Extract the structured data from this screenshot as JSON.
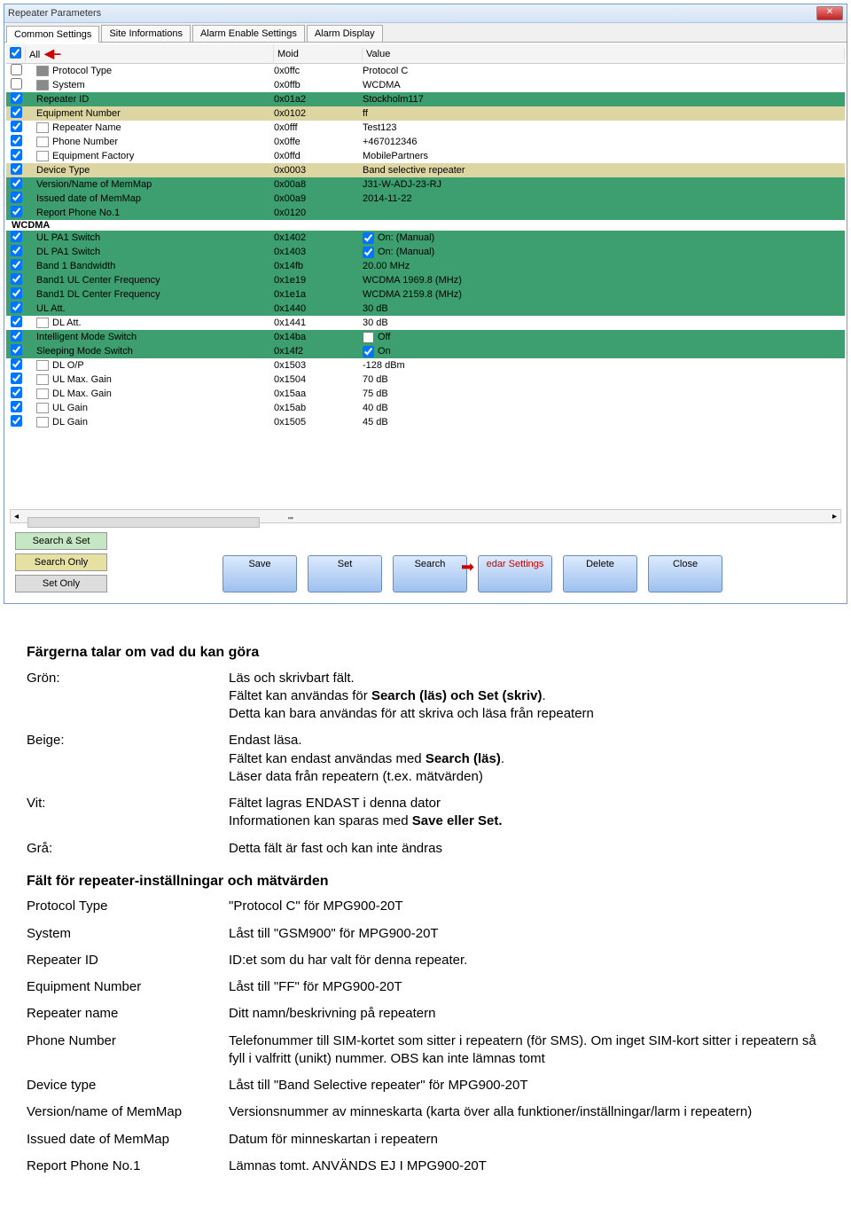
{
  "window": {
    "title": "Repeater Parameters",
    "tabs": [
      "Common Settings",
      "Site Informations",
      "Alarm Enable Settings",
      "Alarm Display"
    ],
    "active_tab": 0,
    "header_all": "All",
    "header_moid": "Moid",
    "header_value": "Value",
    "buttons_left": [
      "Search & Set",
      "Search Only",
      "Set Only"
    ],
    "buttons_main": [
      "Save",
      "Set",
      "Search",
      "edar Settings",
      "Delete",
      "Close"
    ]
  },
  "colors": {
    "green": "#3d9e6f",
    "beige": "#ded6a2",
    "white": "#ffffff",
    "gray": "#8a8a8a",
    "btn_search": "#c6e7c3",
    "btn_search_only": "#e6e0a3",
    "btn_set": "#dddddd"
  },
  "rows": [
    {
      "name": "Protocol Type",
      "moid": "0x0ffc",
      "value": "Protocol C",
      "swatch": "gray",
      "chk": false
    },
    {
      "name": "System",
      "moid": "0x0ffb",
      "value": "WCDMA",
      "swatch": "gray",
      "chk": false
    },
    {
      "name": "Repeater ID",
      "moid": "0x01a2",
      "value": "Stockholm117",
      "swatch": "green",
      "chk": true,
      "hl": true
    },
    {
      "name": "Equipment Number",
      "moid": "0x0102",
      "value": "ff",
      "swatch": "beige",
      "chk": true,
      "hl_beige": true
    },
    {
      "name": "Repeater Name",
      "moid": "0x0fff",
      "value": "Test123",
      "swatch": "white",
      "chk": true
    },
    {
      "name": "Phone Number",
      "moid": "0x0ffe",
      "value": "+467012346",
      "swatch": "white",
      "chk": true
    },
    {
      "name": "Equipment Factory",
      "moid": "0x0ffd",
      "value": "MobilePartners",
      "swatch": "white",
      "chk": true
    },
    {
      "name": "Device Type",
      "moid": "0x0003",
      "value": "Band selective repeater",
      "swatch": "beige",
      "chk": true,
      "hl_beige": true
    },
    {
      "name": "Version/Name of MemMap",
      "moid": "0x00a8",
      "value": "J31-W-ADJ-23-RJ",
      "swatch": "green",
      "chk": true,
      "hl": true
    },
    {
      "name": "Issued date of MemMap",
      "moid": "0x00a9",
      "value": "2014-11-22",
      "swatch": "green",
      "chk": true,
      "hl": true
    },
    {
      "name": "Report Phone No.1",
      "moid": "0x0120",
      "value": "",
      "swatch": "green",
      "chk": true,
      "hl": true
    }
  ],
  "section": "WCDMA",
  "rows2": [
    {
      "name": "UL PA1 Switch",
      "moid": "0x1402",
      "value": "On: (Manual)",
      "chk": true,
      "hl": true,
      "vcheck": true
    },
    {
      "name": "DL PA1 Switch",
      "moid": "0x1403",
      "value": "On: (Manual)",
      "chk": true,
      "hl": true,
      "vcheck": true
    },
    {
      "name": "Band 1 Bandwidth",
      "moid": "0x14fb",
      "value": "20.00 MHz",
      "chk": true,
      "hl": true
    },
    {
      "name": "Band1 UL Center Frequency",
      "moid": "0x1e19",
      "value": "WCDMA  1969.8 (MHz)",
      "chk": true,
      "hl": true
    },
    {
      "name": "Band1 DL Center Frequency",
      "moid": "0x1e1a",
      "value": "WCDMA  2159.8 (MHz)",
      "chk": true,
      "hl": true
    },
    {
      "name": "UL Att.",
      "moid": "0x1440",
      "value": "30 dB",
      "chk": true,
      "hl": true
    },
    {
      "name": "DL Att.",
      "moid": "0x1441",
      "value": "30 dB",
      "chk": true,
      "hl": false,
      "swatch": "white"
    },
    {
      "name": "Intelligent Mode Switch",
      "moid": "0x14ba",
      "value": "Off",
      "chk": true,
      "hl": true,
      "vcheck_off": true
    },
    {
      "name": "Sleeping Mode Switch",
      "moid": "0x14f2",
      "value": "On",
      "chk": true,
      "hl": true,
      "vcheck": true
    },
    {
      "name": "DL O/P",
      "moid": "0x1503",
      "value": "-128 dBm",
      "chk": true,
      "hl": false,
      "swatch": "white"
    },
    {
      "name": "UL Max. Gain",
      "moid": "0x1504",
      "value": "70 dB",
      "chk": true,
      "hl": false,
      "swatch": "white"
    },
    {
      "name": "DL Max. Gain",
      "moid": "0x15aa",
      "value": "75 dB",
      "chk": true,
      "hl": false,
      "swatch": "white"
    },
    {
      "name": "UL Gain",
      "moid": "0x15ab",
      "value": "40 dB",
      "chk": true,
      "hl": false,
      "swatch": "white"
    },
    {
      "name": "DL Gain",
      "moid": "0x1505",
      "value": "45 dB",
      "chk": true,
      "hl": false,
      "swatch": "white"
    }
  ],
  "doc": {
    "h1": "Färgerna talar om vad du kan göra",
    "colors": [
      {
        "label": "Grön:",
        "desc": "Läs och skrivbart fält.\nFältet kan användas för <b>Search (läs) och Set (skriv)</b>.\nDetta kan bara användas för att skriva och läsa från repeatern"
      },
      {
        "label": "Beige:",
        "desc": "Endast läsa.\nFältet kan endast användas med <b>Search (läs)</b>.\nLäser data från repeatern (t.ex. mätvärden)"
      },
      {
        "label": "Vit:",
        "desc": "Fältet lagras ENDAST i denna dator\nInformationen kan sparas med <b>Save eller Set.</b>"
      },
      {
        "label": "Grå:",
        "desc": "Detta fält är fast och kan inte ändras"
      }
    ],
    "h2": "Fält för repeater-inställningar och mätvärden",
    "fields": [
      {
        "label": "Protocol Type",
        "desc": "\"Protocol C\" för MPG900-20T"
      },
      {
        "label": "System",
        "desc": "Låst till \"GSM900\" för MPG900-20T"
      },
      {
        "label": "Repeater ID",
        "desc": "ID:et som du har valt för denna repeater."
      },
      {
        "label": "Equipment Number",
        "desc": "Låst till \"FF\" för MPG900-20T"
      },
      {
        "label": "Repeater name",
        "desc": "Ditt namn/beskrivning på repeatern"
      },
      {
        "label": "Phone Number",
        "desc": "Telefonummer till SIM-kortet som sitter i repeatern (för SMS). Om inget SIM-kort sitter i repeatern så fyll i valfritt (unikt) nummer. OBS kan inte lämnas tomt"
      },
      {
        "label": "Device type",
        "desc": "Låst till \"Band Selective repeater\" för MPG900-20T"
      },
      {
        "label": "Version/name of MemMap",
        "desc": "Versionsnummer av  minneskarta (karta över alla funktioner/inställningar/larm i repeatern)"
      },
      {
        "label": "Issued date of MemMap",
        "desc": "Datum för minneskartan i repeatern"
      },
      {
        "label": "Report Phone No.1",
        "desc": "Lämnas tomt. ANVÄNDS EJ I MPG900-20T"
      }
    ]
  }
}
